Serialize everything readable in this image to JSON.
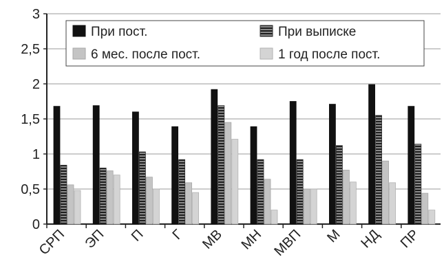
{
  "chart_data": {
    "type": "bar",
    "title": "",
    "xlabel": "",
    "ylabel": "",
    "ylim": [
      0,
      3
    ],
    "yticks": [
      "0",
      "0,5",
      "1",
      "1,5",
      "2",
      "2,5",
      "3"
    ],
    "grid": true,
    "legend_position": "top",
    "categories": [
      "СРП",
      "ЭП",
      "П",
      "Г",
      "МВ",
      "МН",
      "МВП",
      "М",
      "НД",
      "ПР"
    ],
    "series": [
      {
        "name": "При пост.",
        "pattern": "solid-dark",
        "color": "#111111",
        "values": [
          1.68,
          1.69,
          1.6,
          1.39,
          1.92,
          1.39,
          1.75,
          1.71,
          1.99,
          1.68
        ]
      },
      {
        "name": "При выписке",
        "pattern": "striped",
        "color": "#444444",
        "values": [
          0.84,
          0.8,
          1.03,
          0.92,
          1.69,
          0.92,
          0.92,
          1.12,
          1.55,
          1.14
        ]
      },
      {
        "name": "6 мес. после пост.",
        "pattern": "light",
        "color": "#c4c4c4",
        "values": [
          0.56,
          0.76,
          0.67,
          0.59,
          1.45,
          0.64,
          0.5,
          0.77,
          0.9,
          0.44
        ]
      },
      {
        "name": "1 год после пост.",
        "pattern": "lighter",
        "color": "#d4d4d4",
        "values": [
          0.48,
          0.7,
          0.5,
          0.45,
          1.21,
          0.2,
          0.5,
          0.6,
          0.59,
          0.2
        ]
      }
    ]
  }
}
